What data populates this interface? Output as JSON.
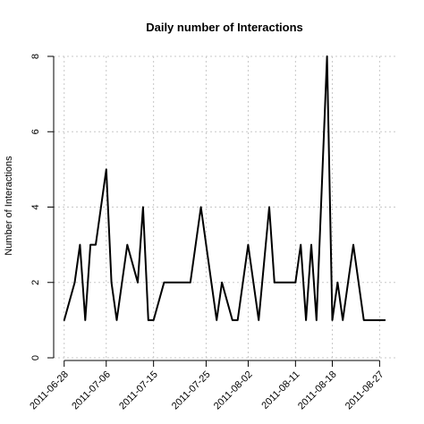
{
  "chart_data": {
    "type": "line",
    "title": "Daily number of Interactions",
    "xlabel": "",
    "ylabel": "Number of Interactions",
    "x_type": "date",
    "xlim": [
      "2011-06-26",
      "2011-08-30"
    ],
    "ylim": [
      0,
      8
    ],
    "grid": true,
    "x_ticks": [
      "2011-06-28",
      "2011-07-06",
      "2011-07-15",
      "2011-07-25",
      "2011-08-02",
      "2011-08-11",
      "2011-08-18",
      "2011-08-27"
    ],
    "y_ticks": [
      0,
      2,
      4,
      6,
      8
    ],
    "series": [
      {
        "color": "#000000",
        "points": [
          [
            "2011-06-28",
            1
          ],
          [
            "2011-06-30",
            2
          ],
          [
            "2011-07-01",
            3
          ],
          [
            "2011-07-02",
            1
          ],
          [
            "2011-07-03",
            3
          ],
          [
            "2011-07-04",
            3
          ],
          [
            "2011-07-06",
            5
          ],
          [
            "2011-07-07",
            2
          ],
          [
            "2011-07-08",
            1
          ],
          [
            "2011-07-10",
            3
          ],
          [
            "2011-07-12",
            2
          ],
          [
            "2011-07-13",
            4
          ],
          [
            "2011-07-14",
            1
          ],
          [
            "2011-07-15",
            1
          ],
          [
            "2011-07-17",
            2
          ],
          [
            "2011-07-20",
            2
          ],
          [
            "2011-07-22",
            2
          ],
          [
            "2011-07-24",
            4
          ],
          [
            "2011-07-26",
            2
          ],
          [
            "2011-07-27",
            1
          ],
          [
            "2011-07-28",
            2
          ],
          [
            "2011-07-30",
            1
          ],
          [
            "2011-07-31",
            1
          ],
          [
            "2011-08-02",
            3
          ],
          [
            "2011-08-04",
            1
          ],
          [
            "2011-08-06",
            4
          ],
          [
            "2011-08-07",
            2
          ],
          [
            "2011-08-10",
            2
          ],
          [
            "2011-08-11",
            2
          ],
          [
            "2011-08-12",
            3
          ],
          [
            "2011-08-13",
            1
          ],
          [
            "2011-08-14",
            3
          ],
          [
            "2011-08-15",
            1
          ],
          [
            "2011-08-17",
            8
          ],
          [
            "2011-08-18",
            1
          ],
          [
            "2011-08-19",
            2
          ],
          [
            "2011-08-20",
            1
          ],
          [
            "2011-08-22",
            3
          ],
          [
            "2011-08-24",
            1
          ],
          [
            "2011-08-28",
            1
          ]
        ]
      }
    ]
  }
}
